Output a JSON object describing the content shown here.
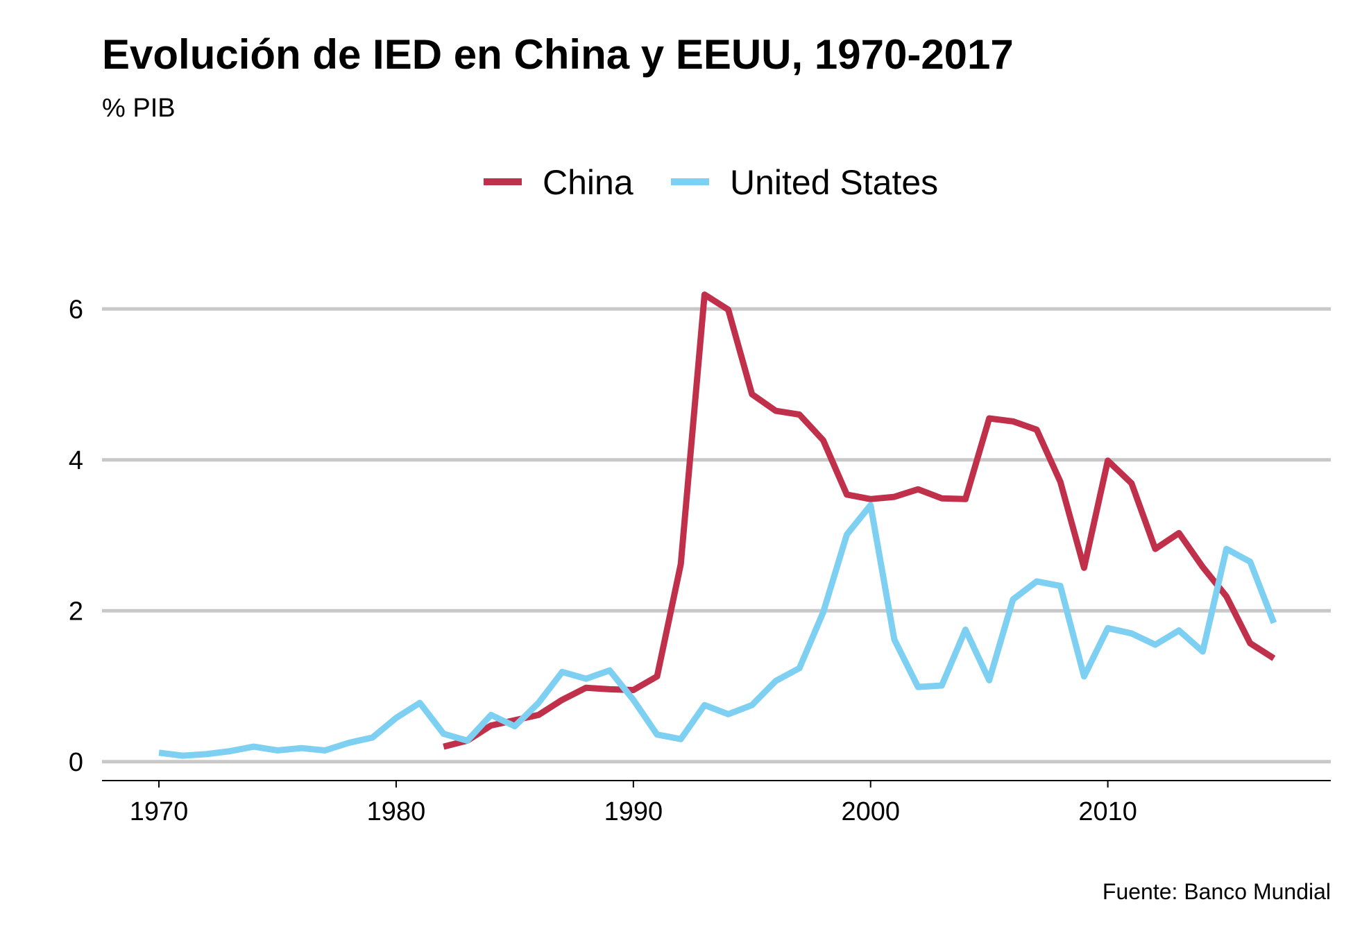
{
  "chart_data": {
    "type": "line",
    "title": "Evolución de IED en China y EEUU, 1970-2017",
    "subtitle": "% PIB",
    "caption": "Fuente: Banco Mundial",
    "xlabel": "",
    "ylabel": "",
    "xlim": [
      1967.6,
      2019.4
    ],
    "ylim": [
      -0.25,
      6.6
    ],
    "x_ticks": [
      1970,
      1980,
      1990,
      2000,
      2010
    ],
    "y_ticks": [
      0,
      2,
      4,
      6
    ],
    "grid": "horizontal major",
    "legend_position": "top",
    "series": [
      {
        "name": "China",
        "color": "#c0304a",
        "x": [
          1982,
          1983,
          1984,
          1985,
          1986,
          1987,
          1988,
          1989,
          1990,
          1991,
          1992,
          1993,
          1994,
          1995,
          1996,
          1997,
          1998,
          1999,
          2000,
          2001,
          2002,
          2003,
          2004,
          2005,
          2006,
          2007,
          2008,
          2009,
          2010,
          2011,
          2012,
          2013,
          2014,
          2015,
          2016,
          2017
        ],
        "values": [
          0.2,
          0.28,
          0.48,
          0.55,
          0.62,
          0.82,
          0.98,
          0.96,
          0.95,
          1.13,
          2.62,
          6.19,
          5.99,
          4.87,
          4.65,
          4.6,
          4.26,
          3.54,
          3.48,
          3.51,
          3.61,
          3.49,
          3.48,
          4.55,
          4.51,
          4.4,
          3.71,
          2.57,
          3.99,
          3.69,
          2.82,
          3.03,
          2.58,
          2.19,
          1.57,
          1.37
        ]
      },
      {
        "name": "United States",
        "color": "#7dd0f2",
        "x": [
          1970,
          1971,
          1972,
          1973,
          1974,
          1975,
          1976,
          1977,
          1978,
          1979,
          1980,
          1981,
          1982,
          1983,
          1984,
          1985,
          1986,
          1987,
          1988,
          1989,
          1990,
          1991,
          1992,
          1993,
          1994,
          1995,
          1996,
          1997,
          1998,
          1999,
          2000,
          2001,
          2002,
          2003,
          2004,
          2005,
          2006,
          2007,
          2008,
          2009,
          2010,
          2011,
          2012,
          2013,
          2014,
          2015,
          2016,
          2017
        ],
        "values": [
          0.12,
          0.08,
          0.1,
          0.14,
          0.2,
          0.15,
          0.18,
          0.15,
          0.25,
          0.32,
          0.58,
          0.78,
          0.37,
          0.28,
          0.62,
          0.47,
          0.78,
          1.19,
          1.1,
          1.21,
          0.82,
          0.36,
          0.3,
          0.75,
          0.63,
          0.75,
          1.07,
          1.24,
          1.98,
          3.01,
          3.4,
          1.62,
          0.99,
          1.01,
          1.75,
          1.08,
          2.15,
          2.39,
          2.33,
          1.13,
          1.77,
          1.7,
          1.55,
          1.74,
          1.46,
          2.82,
          2.65,
          1.84
        ]
      }
    ]
  }
}
